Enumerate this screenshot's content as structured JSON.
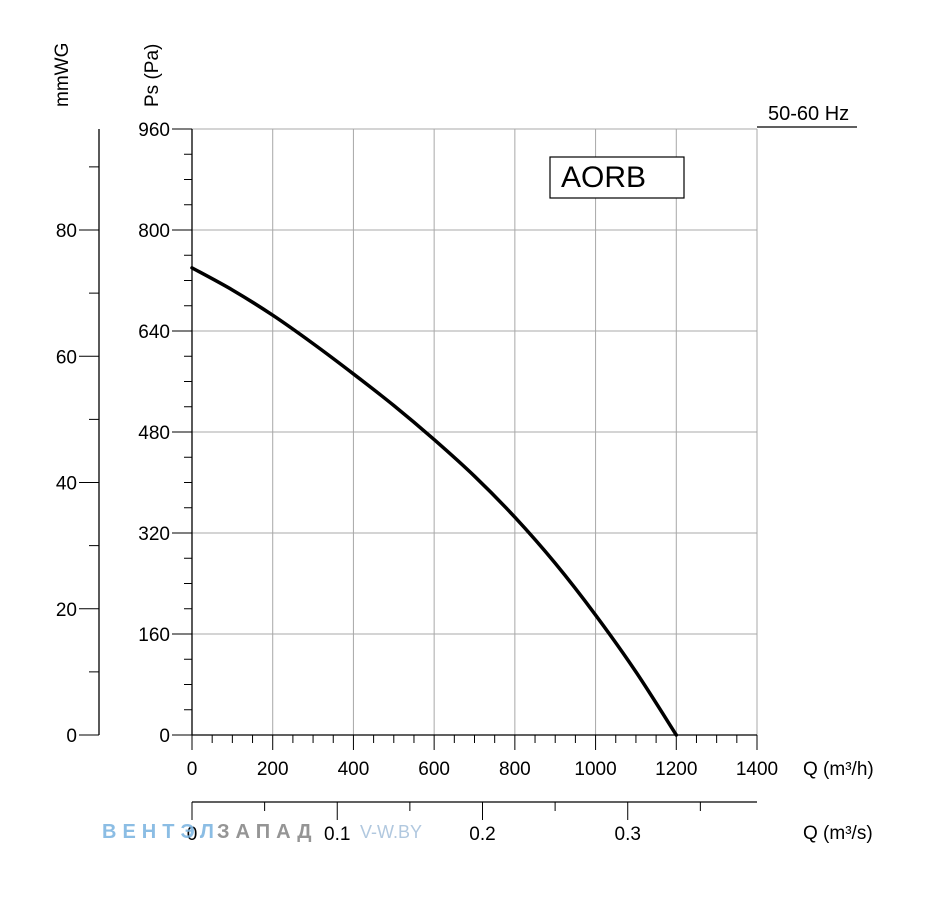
{
  "chart_data": {
    "type": "line",
    "model_label": "AORB",
    "frequency_label": "50-60 Hz",
    "ylabel": "Ps (Pa)",
    "ylabel_secondary": "mmWG",
    "xlabel": "Q (m³/h)",
    "xlabel_secondary": "Q (m³/s)",
    "xlim": [
      0,
      1400
    ],
    "ylim": [
      0,
      960
    ],
    "xticks": [
      0,
      200,
      400,
      600,
      800,
      1000,
      1200,
      1400
    ],
    "yticks": [
      0,
      160,
      320,
      480,
      640,
      800,
      960
    ],
    "ylim_secondary": [
      0,
      96
    ],
    "yticks_secondary": [
      0,
      20,
      40,
      60,
      80
    ],
    "xlim_secondary": [
      0,
      0.389
    ],
    "xticks_secondary": [
      0,
      0.1,
      0.2,
      0.3
    ],
    "grid": true,
    "series": [
      {
        "x": [
          0,
          100,
          200,
          300,
          400,
          500,
          600,
          700,
          800,
          900,
          1000,
          1100,
          1200
        ],
        "values": [
          740,
          705,
          665,
          620,
          572,
          522,
          468,
          410,
          345,
          272,
          190,
          100,
          0
        ]
      }
    ]
  },
  "watermark": {
    "brand_part1": "ВЕНТЭЛ",
    "brand_part2": "ЗАПАД",
    "site": "V-W.BY"
  },
  "colors": {
    "curve": "#000000",
    "grid": "#a8a8a8",
    "watermark_blue": "#7fb6e2",
    "watermark_gray": "#8a8a8a",
    "watermark_site": "#a9c3dc"
  }
}
